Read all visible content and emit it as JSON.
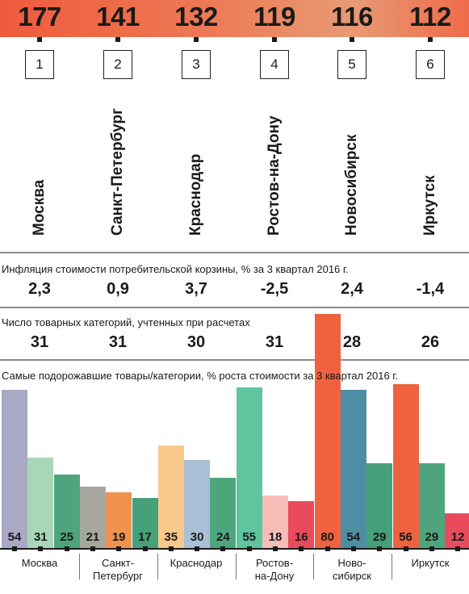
{
  "colors": {
    "top_band": "#ee5a3c",
    "moscow": [
      "#a9a9c6",
      "#a9d6b6",
      "#4ea57d"
    ],
    "spb": [
      "#a6a8a0",
      "#f0924e",
      "#46a07a"
    ],
    "krasnodar": [
      "#f9c98a",
      "#a9bfd6",
      "#4ea57d"
    ],
    "rostov": [
      "#5ec59f",
      "#f8bcb8",
      "#e94b5d"
    ],
    "novosibirsk": [
      "#ee623f",
      "#4e8ea4",
      "#46a07a"
    ],
    "irkutsk": [
      "#ee623f",
      "#4ea57d",
      "#e94b5d"
    ]
  },
  "ranking": {
    "scores": [
      "177",
      "141",
      "132",
      "119",
      "116",
      "112"
    ],
    "ranks": [
      "1",
      "2",
      "3",
      "4",
      "5",
      "6"
    ],
    "cities": [
      "Москва",
      "Санкт-Петербург",
      "Краснодар",
      "Ростов-на-Дону",
      "Новосибирск",
      "Иркутск"
    ]
  },
  "inflation": {
    "label": "Инфляция стоимости потребительской корзины, % за 3 квартал 2016 г.",
    "values": [
      "2,3",
      "0,9",
      "3,7",
      "-2,5",
      "2,4",
      "-1,4"
    ]
  },
  "categories_count": {
    "label": "Число товарных категорий, учтенных при расчетах",
    "values": [
      "31",
      "31",
      "30",
      "31",
      "28",
      "26"
    ]
  },
  "chart_data": {
    "type": "bar",
    "title": "Самые подорожавшие товары/категории, % роста стоимости за 3 квартал 2016 г.",
    "categories": [
      "Москва",
      "Санкт-Петербург",
      "Краснодар",
      "Ростов-на-Дону",
      "Новосибирск",
      "Иркутск"
    ],
    "bottom_labels": [
      "Москва",
      "Санкт-\nПетербург",
      "Краснодар",
      "Ростов-\nна-Дону",
      "Ново-\nсибирск",
      "Иркутск"
    ],
    "groups": [
      {
        "city": "Москва",
        "values": [
          54,
          31,
          25
        ]
      },
      {
        "city": "Санкт-Петербург",
        "values": [
          21,
          19,
          17
        ]
      },
      {
        "city": "Краснодар",
        "values": [
          35,
          30,
          24
        ]
      },
      {
        "city": "Ростов-на-Дону",
        "values": [
          55,
          18,
          16
        ]
      },
      {
        "city": "Новосибирск",
        "values": [
          80,
          54,
          29
        ]
      },
      {
        "city": "Иркутск",
        "values": [
          56,
          29,
          12
        ]
      }
    ],
    "ylim": [
      0,
      80
    ]
  }
}
